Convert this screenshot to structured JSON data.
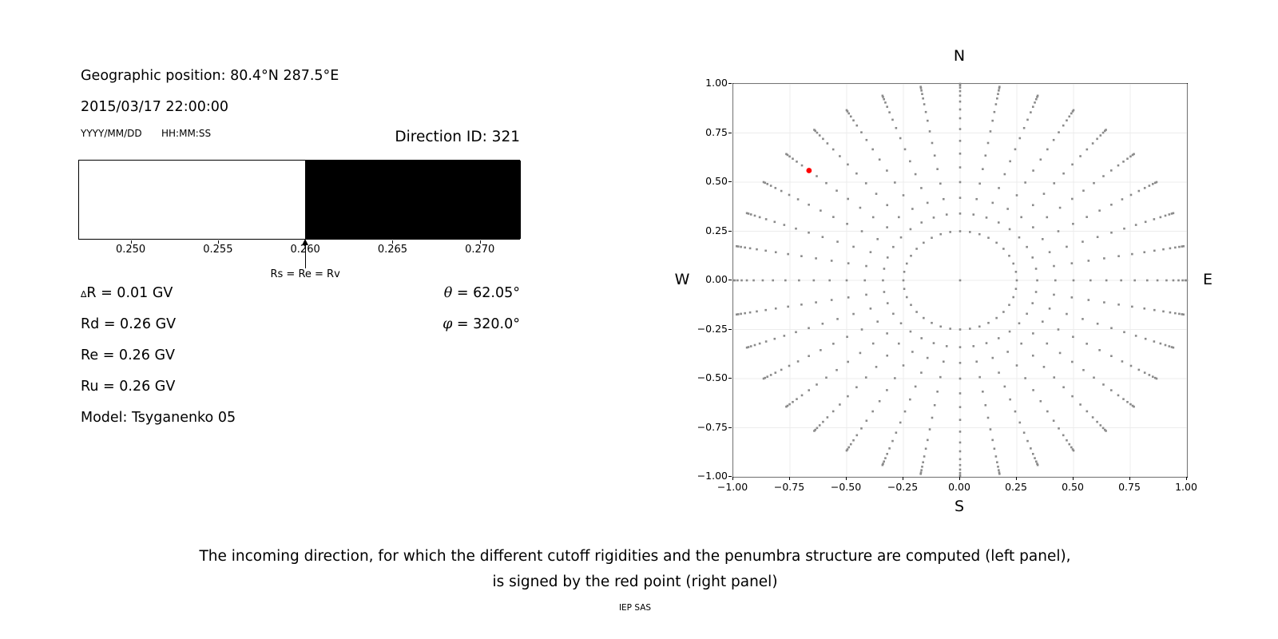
{
  "header": {
    "geographic_position": "Geographic position: 80.4°N 287.5°E",
    "datetime": "2015/03/17 22:00:00",
    "date_format": "YYYY/MM/DD",
    "time_format": "HH:MM:SS",
    "direction_id": "Direction ID: 321"
  },
  "parameters": {
    "delta_symbol": "∆",
    "delta_r_text": "R = 0.01 GV",
    "rd": "Rd = 0.26 GV",
    "re": "Re = 0.26 GV",
    "ru": "Ru = 0.26 GV",
    "model": "Model: Tsyganenko 05",
    "theta_symbol": "θ",
    "theta_value": "= 62.05°",
    "phi_symbol": "φ",
    "phi_value": "= 320.0°"
  },
  "caption": {
    "line1": "The incoming direction, for which the different cutoff rigidities and the penumbra structure are computed (left panel),",
    "line2": "is signed by the red point (right panel)",
    "credit": "IEP SAS"
  },
  "chart_data": [
    {
      "id": "penumbra",
      "type": "bar",
      "title": "",
      "xlabel": "",
      "ylabel": "",
      "xlim": [
        0.247,
        0.2723
      ],
      "xtick_values": [
        0.25,
        0.255,
        0.26,
        0.265,
        0.27
      ],
      "xtick_labels": [
        "0.250",
        "0.255",
        "0.260",
        "0.265",
        "0.270"
      ],
      "allowed_band": {
        "from": 0.247,
        "to": 0.26,
        "color": "#ffffff"
      },
      "forbidden_band": {
        "from": 0.26,
        "to": 0.2723,
        "color": "#000000"
      },
      "annotation": {
        "x": 0.26,
        "label": "Rs = Re = Rv"
      }
    },
    {
      "id": "direction_grid",
      "type": "scatter",
      "xlim": [
        -1,
        1
      ],
      "ylim": [
        -1,
        1
      ],
      "xtick_values": [
        -1,
        -0.75,
        -0.5,
        -0.25,
        0,
        0.25,
        0.5,
        0.75,
        1
      ],
      "xtick_labels": [
        "−1.00",
        "−0.75",
        "−0.50",
        "−0.25",
        "0.00",
        "0.25",
        "0.50",
        "0.75",
        "1.00"
      ],
      "ytick_values": [
        1,
        0.75,
        0.5,
        0.25,
        0,
        -0.25,
        -0.5,
        -0.75,
        -1
      ],
      "ytick_labels": [
        "1.00",
        "0.75",
        "0.50",
        "0.25",
        "0.00",
        "−0.25",
        "−0.50",
        "−0.75",
        "−1.00"
      ],
      "grid": true,
      "grid_color": "#ececec",
      "dot_color": "#8a8a8a",
      "compass": {
        "top": "N",
        "bottom": "S",
        "left": "W",
        "right": "E"
      },
      "spokes": {
        "azimuth_deg": [
          0,
          10,
          20,
          30,
          40,
          50,
          60,
          70,
          80,
          90,
          100,
          110,
          120,
          130,
          140,
          150,
          160,
          170,
          180,
          190,
          200,
          210,
          220,
          230,
          240,
          250,
          260,
          270,
          280,
          290,
          300,
          310,
          320,
          330,
          340,
          350
        ],
        "radii": [
          0.25,
          0.34,
          0.42,
          0.5,
          0.575,
          0.645,
          0.71,
          0.77,
          0.825,
          0.87,
          0.91,
          0.94,
          0.963,
          0.981,
          0.993,
          1.0
        ]
      },
      "center_point": {
        "x": 0,
        "y": 0
      },
      "marked_point": {
        "x": -0.666,
        "y": 0.559,
        "color": "#ff0000"
      }
    }
  ]
}
